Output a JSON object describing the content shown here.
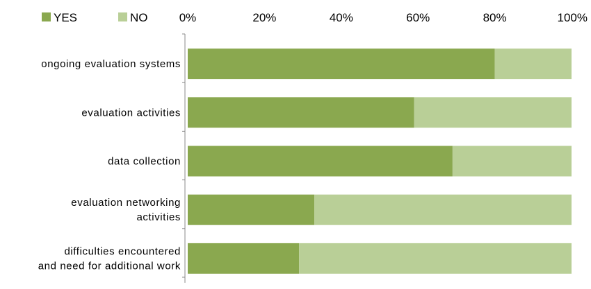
{
  "chart_data": {
    "type": "bar",
    "orientation": "horizontal",
    "stacked": true,
    "categories": [
      [
        "ongoing evaluation systems"
      ],
      [
        "evaluation activities"
      ],
      [
        "data collection"
      ],
      [
        "evaluation networking",
        "activities"
      ],
      [
        "difficulties encountered",
        "and need for additional work"
      ]
    ],
    "series": [
      {
        "name": "YES",
        "color": "#8aa84f",
        "values": [
          80,
          59,
          69,
          33,
          29
        ]
      },
      {
        "name": "NO",
        "color": "#b9cf97",
        "values": [
          20,
          41,
          31,
          67,
          71
        ]
      }
    ],
    "xticks": [
      "0%",
      "20%",
      "40%",
      "60%",
      "80%",
      "100%"
    ],
    "xlim": [
      0,
      100
    ],
    "legend_position": "top-left",
    "axis_position": "top",
    "grid": false
  }
}
